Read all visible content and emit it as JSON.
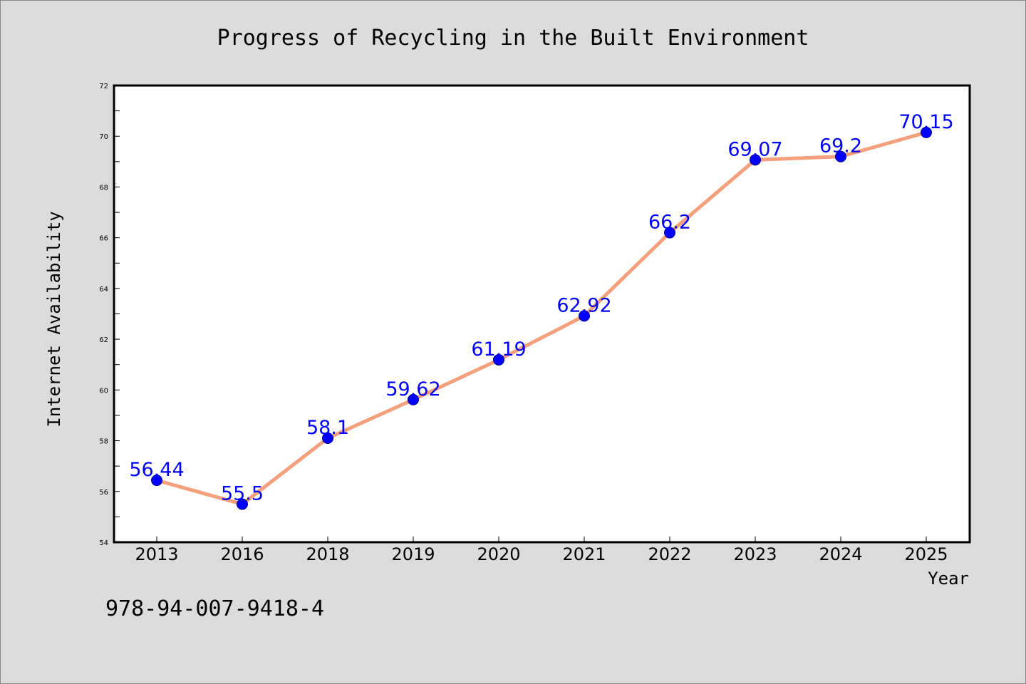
{
  "chart_data": {
    "type": "line",
    "title": "Progress of Recycling in the Built Environment",
    "xlabel": "Year",
    "ylabel": "Internet Availability",
    "categories": [
      "2013",
      "2016",
      "2018",
      "2019",
      "2020",
      "2021",
      "2022",
      "2023",
      "2024",
      "2025"
    ],
    "values": [
      56.44,
      55.5,
      58.1,
      59.62,
      61.19,
      62.92,
      66.2,
      69.07,
      69.2,
      70.15
    ],
    "data_labels": [
      "56.44",
      "55.5",
      "58.1",
      "59.62",
      "61.19",
      "62.92",
      "66.2",
      "69.07",
      "69.2",
      "70.15"
    ],
    "ylim": [
      54,
      72
    ],
    "yticks": [
      "54",
      "56",
      "58",
      "60",
      "62",
      "64",
      "66",
      "68",
      "70",
      "72"
    ],
    "grid": false,
    "line_color": "#f4a07c",
    "marker_color": "#0000ff",
    "label_color": "#0000ff",
    "background_color": "#dcdcdc",
    "plot_background": "#ffffff"
  },
  "footer": {
    "isbn": "978-94-007-9418-4"
  }
}
